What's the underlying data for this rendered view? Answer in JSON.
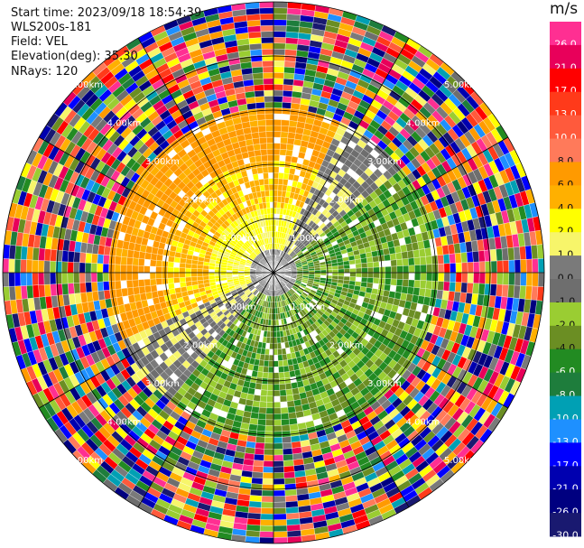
{
  "header": {
    "start_time": "Start time: 2023/09/18 18:54:39",
    "instrument": "WLS200s-181",
    "field": "Field: VEL",
    "elevation": "Elevation(deg): 35.30",
    "nrays": "NRays: 120"
  },
  "colorbar": {
    "unit": "m/s",
    "ticks": [
      "26.0",
      "21.0",
      "17.0",
      "13.0",
      "10.0",
      "8.0",
      "6.0",
      "4.0",
      "2.0",
      "1.0",
      "0.0",
      "-1.0",
      "-2.0",
      "-4.0",
      "-6.0",
      "-8.0",
      "-10.0",
      "-13.0",
      "-17.0",
      "-21.0",
      "-26.0",
      "-30.0"
    ],
    "colors": [
      "#ff2f92",
      "#e8005a",
      "#ff0000",
      "#ff3a1a",
      "#ff5a3c",
      "#ff7a5a",
      "#ff9a00",
      "#ffb000",
      "#ffff00",
      "#f7f56a",
      "#7a7a7a",
      "#6e6e6e",
      "#9acd32",
      "#6b8e23",
      "#228b22",
      "#1e7d3c",
      "#00a0b4",
      "#1e90ff",
      "#0000ff",
      "#0000b0",
      "#000080",
      "#191970"
    ]
  },
  "chart_data": {
    "type": "heatmap",
    "projection": "polar PPI",
    "field": "VEL",
    "unit": "m/s",
    "n_rays": 120,
    "range_rings": [
      {
        "label": "1.00km"
      },
      {
        "label": "2.00km"
      },
      {
        "label": "3.00km"
      },
      {
        "label": "4.00km"
      },
      {
        "label": "5.00km"
      }
    ],
    "value_range": [
      -30.0,
      26.0
    ],
    "pattern": "approaching (+) velocities toward north-west, receding (-) toward south-east; noisy outer gates"
  }
}
